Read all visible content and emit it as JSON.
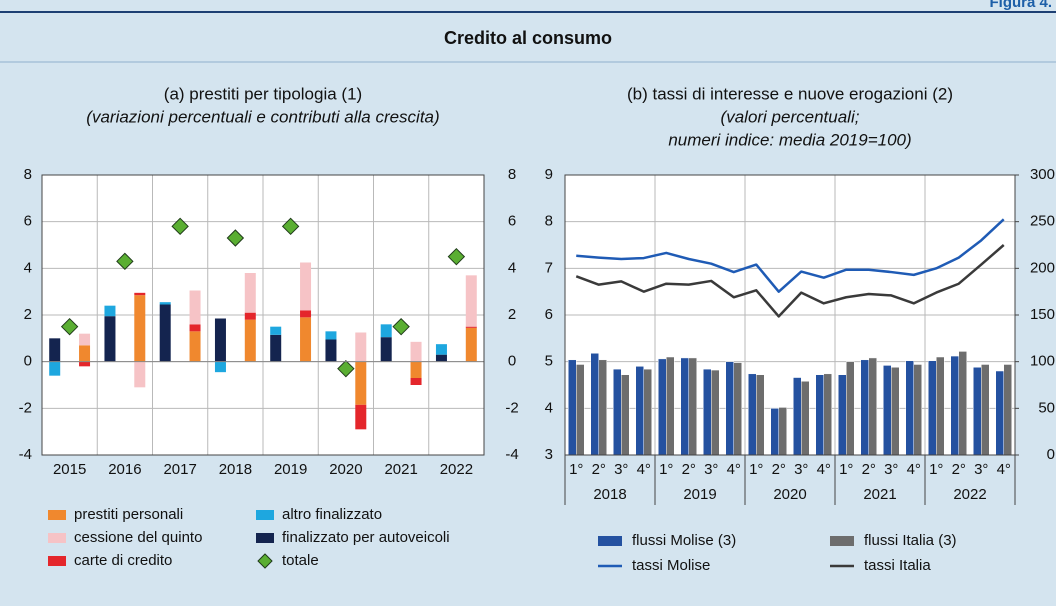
{
  "figure_label": "Figura 4.",
  "title": "Credito al consumo",
  "chart_data": [
    {
      "type": "stacked_bar",
      "subtitle": [
        "(a) prestiti per tipologia (1)",
        "(variazioni percentuali e contributi alla crescita)"
      ],
      "categories": [
        "2015",
        "2016",
        "2017",
        "2018",
        "2019",
        "2020",
        "2021",
        "2022"
      ],
      "series": [
        {
          "name": "prestiti personali",
          "color": "#f0882e",
          "stack": 2,
          "values": [
            0.7,
            2.85,
            1.3,
            1.8,
            1.9,
            -1.85,
            -0.7,
            1.45
          ]
        },
        {
          "name": "carte di credito",
          "color": "#e4262b",
          "stack": 2,
          "values": [
            -0.2,
            0.1,
            0.3,
            0.3,
            0.3,
            -1.05,
            -0.3,
            0.05
          ]
        },
        {
          "name": "cessione del quinto",
          "color": "#f6c3c6",
          "stack": 2,
          "values": [
            0.5,
            -1.1,
            1.45,
            1.7,
            2.05,
            1.25,
            0.85,
            2.2
          ]
        },
        {
          "name": "finalizzato per autoveicoli",
          "color": "#14244f",
          "stack": 1,
          "values": [
            1.0,
            1.95,
            2.45,
            1.85,
            1.15,
            0.95,
            1.05,
            0.3
          ]
        },
        {
          "name": "altro finalizzato",
          "color": "#1ea7df",
          "stack": 1,
          "values": [
            -0.6,
            0.45,
            0.1,
            -0.45,
            0.35,
            0.35,
            0.55,
            0.45
          ]
        },
        {
          "name": "totale",
          "color": "#5aae32",
          "type": "marker",
          "values": [
            1.5,
            4.3,
            5.8,
            5.3,
            5.8,
            -0.3,
            1.5,
            4.5
          ]
        }
      ],
      "ylim": [
        -4,
        8
      ],
      "yticks": [
        -4,
        -2,
        0,
        2,
        4,
        6,
        8
      ],
      "grid": true
    },
    {
      "type": "bar_line",
      "subtitle": [
        "(b) tassi di interesse e nuove erogazioni (2)",
        "(valori percentuali;",
        "numeri indice: media 2019=100)"
      ],
      "categories": [
        "1°",
        "2°",
        "3°",
        "4°",
        "1°",
        "2°",
        "3°",
        "4°",
        "1°",
        "2°",
        "3°",
        "4°",
        "1°",
        "2°",
        "3°",
        "4°",
        "1°",
        "2°",
        "3°",
        "4°"
      ],
      "groups": [
        "2018",
        "2019",
        "2020",
        "2021",
        "2022"
      ],
      "series": [
        {
          "name": "flussi Molise (3)",
          "color": "#2451a0",
          "type": "bar",
          "axis": "y2",
          "values": [
            102,
            109,
            92,
            95,
            103,
            104,
            92,
            100,
            87,
            50,
            83,
            86,
            86,
            102,
            96,
            101,
            101,
            106,
            94,
            90
          ]
        },
        {
          "name": "flussi Italia (3)",
          "color": "#6d6d6d",
          "type": "bar",
          "axis": "y2",
          "values": [
            97,
            102,
            86,
            92,
            105,
            104,
            91,
            99,
            86,
            51,
            79,
            87,
            100,
            104,
            94,
            97,
            105,
            111,
            97,
            97
          ]
        },
        {
          "name": "tassi Molise",
          "color": "#1f5bb5",
          "type": "line",
          "values": [
            7.27,
            7.23,
            7.2,
            7.22,
            7.33,
            7.2,
            7.1,
            6.92,
            7.08,
            6.5,
            6.93,
            6.8,
            6.97,
            6.97,
            6.92,
            6.86,
            7.0,
            7.23,
            7.6,
            8.05
          ]
        },
        {
          "name": "tassi Italia",
          "color": "#3a3a3a",
          "type": "line",
          "values": [
            6.83,
            6.65,
            6.72,
            6.5,
            6.67,
            6.65,
            6.73,
            6.38,
            6.53,
            5.97,
            6.48,
            6.25,
            6.38,
            6.45,
            6.42,
            6.25,
            6.48,
            6.67,
            7.08,
            7.5
          ]
        }
      ],
      "ylim": [
        3,
        9
      ],
      "yticks": [
        3,
        4,
        5,
        6,
        7,
        8,
        9
      ],
      "y2lim": [
        0,
        300
      ],
      "y2ticks": [
        0,
        50,
        100,
        150,
        200,
        250,
        300
      ],
      "grid": true
    }
  ]
}
